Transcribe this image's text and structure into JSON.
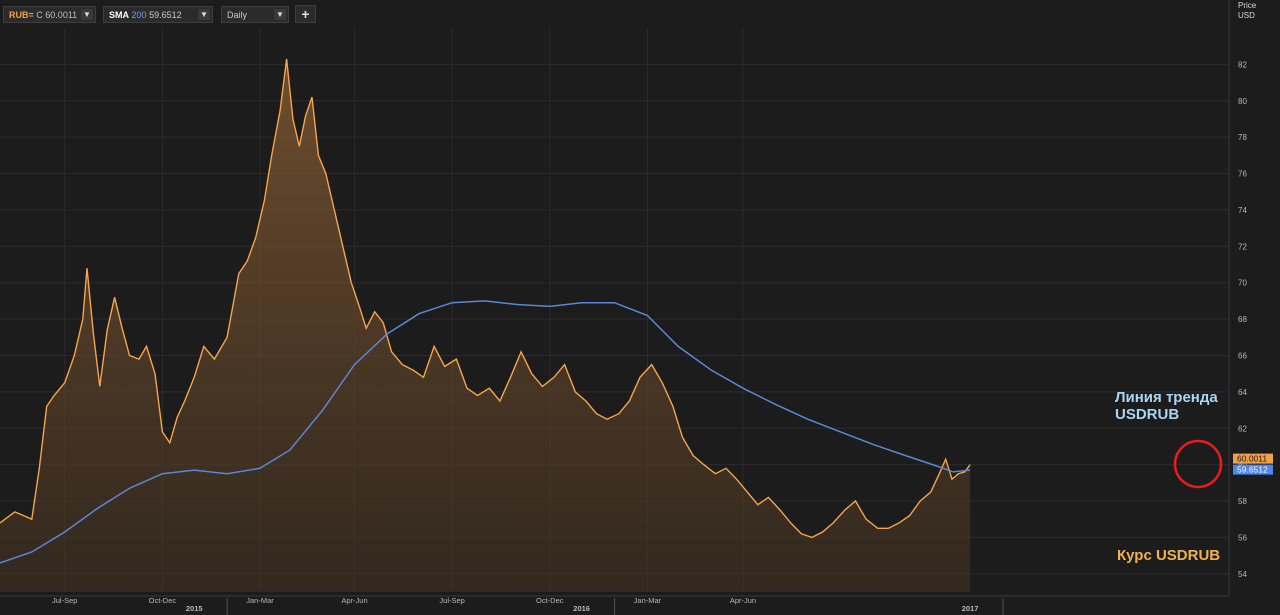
{
  "toolbar": {
    "ric_symbol": "RUB=",
    "ric_close_label": "C",
    "ric_close_value": "60.0011",
    "sma_name": "SMA",
    "sma_period": "200",
    "sma_value": "59.6512",
    "interval": "Daily",
    "add_label": "+",
    "dropdown_glyph": "▼"
  },
  "axis": {
    "price_title": "Price",
    "currency": "USD"
  },
  "annotations": {
    "trend_line_1": "Линия тренда",
    "trend_line_2": "USDRUB",
    "rate_label": "Курс USDRUB"
  },
  "colors": {
    "background": "#1c1c1c",
    "price_line": "#f5a54a",
    "sma_line": "#5b87d8",
    "price_fill": "#7a5530",
    "badge_price": "#f0a046",
    "badge_sma": "#4f86ea",
    "highlight_circle": "#e81c1c",
    "grid": "#2b2b2b"
  },
  "chart_data": {
    "type": "line",
    "title": "",
    "xlabel": "",
    "ylabel": "Price USD",
    "x_range": [
      "2014-06",
      "2017-08"
    ],
    "ylim": [
      53,
      84
    ],
    "grid": true,
    "y_ticks": [
      54,
      56,
      58,
      60,
      62,
      64,
      66,
      68,
      70,
      72,
      74,
      76,
      78,
      80,
      82
    ],
    "x_ticks": [
      {
        "x": "2014-08",
        "label": "Jul-Sep"
      },
      {
        "x": "2014-11",
        "label": "Oct-Dec"
      },
      {
        "x": "2015-02",
        "label": "Jan-Mar"
      },
      {
        "x": "2015-05",
        "label": "Apr-Jun"
      },
      {
        "x": "2015-08",
        "label": "Jul-Sep"
      },
      {
        "x": "2015-11",
        "label": "Oct-Dec"
      },
      {
        "x": "2016-02",
        "label": "Jan-Mar"
      },
      {
        "x": "2016-05",
        "label": "Apr-Jun"
      }
    ],
    "year_labels": [
      {
        "x": "2014-12",
        "label": "2015"
      },
      {
        "x": "2015-12",
        "label": "2016"
      },
      {
        "x": "2016-12",
        "label": "2017"
      }
    ],
    "year_separators": [
      "2015-01",
      "2016-01",
      "2017-01"
    ],
    "series": [
      {
        "name": "RUB=",
        "style": "area",
        "points": [
          [
            "2014-06-01",
            56.8
          ],
          [
            "2014-06-15",
            57.4
          ],
          [
            "2014-07-01",
            57.0
          ],
          [
            "2014-07-08",
            59.8
          ],
          [
            "2014-07-15",
            63.2
          ],
          [
            "2014-07-22",
            63.8
          ],
          [
            "2014-08-01",
            64.5
          ],
          [
            "2014-08-10",
            66.0
          ],
          [
            "2014-08-18",
            68.0
          ],
          [
            "2014-08-22",
            70.8
          ],
          [
            "2014-08-28",
            67.2
          ],
          [
            "2014-09-03",
            64.3
          ],
          [
            "2014-09-10",
            67.4
          ],
          [
            "2014-09-17",
            69.2
          ],
          [
            "2014-09-24",
            67.5
          ],
          [
            "2014-10-01",
            66.0
          ],
          [
            "2014-10-10",
            65.8
          ],
          [
            "2014-10-17",
            66.5
          ],
          [
            "2014-10-25",
            65.0
          ],
          [
            "2014-11-01",
            61.8
          ],
          [
            "2014-11-08",
            61.2
          ],
          [
            "2014-11-15",
            62.6
          ],
          [
            "2014-11-22",
            63.5
          ],
          [
            "2014-12-01",
            64.8
          ],
          [
            "2014-12-10",
            66.5
          ],
          [
            "2014-12-20",
            65.8
          ],
          [
            "2015-01-01",
            67.0
          ],
          [
            "2015-01-12",
            70.5
          ],
          [
            "2015-01-20",
            71.2
          ],
          [
            "2015-01-28",
            72.5
          ],
          [
            "2015-02-05",
            74.5
          ],
          [
            "2015-02-12",
            77.0
          ],
          [
            "2015-02-20",
            79.5
          ],
          [
            "2015-02-26",
            82.3
          ],
          [
            "2015-03-04",
            79.0
          ],
          [
            "2015-03-10",
            77.5
          ],
          [
            "2015-03-16",
            79.2
          ],
          [
            "2015-03-22",
            80.2
          ],
          [
            "2015-03-28",
            77.0
          ],
          [
            "2015-04-04",
            76.0
          ],
          [
            "2015-04-12",
            74.0
          ],
          [
            "2015-04-20",
            72.0
          ],
          [
            "2015-04-28",
            70.0
          ],
          [
            "2015-05-05",
            68.8
          ],
          [
            "2015-05-12",
            67.5
          ],
          [
            "2015-05-20",
            68.4
          ],
          [
            "2015-05-28",
            67.8
          ],
          [
            "2015-06-05",
            66.2
          ],
          [
            "2015-06-15",
            65.5
          ],
          [
            "2015-06-25",
            65.2
          ],
          [
            "2015-07-05",
            64.8
          ],
          [
            "2015-07-15",
            66.5
          ],
          [
            "2015-07-25",
            65.4
          ],
          [
            "2015-08-05",
            65.8
          ],
          [
            "2015-08-15",
            64.2
          ],
          [
            "2015-08-25",
            63.8
          ],
          [
            "2015-09-05",
            64.2
          ],
          [
            "2015-09-15",
            63.5
          ],
          [
            "2015-09-25",
            64.8
          ],
          [
            "2015-10-05",
            66.2
          ],
          [
            "2015-10-15",
            65.0
          ],
          [
            "2015-10-25",
            64.3
          ],
          [
            "2015-11-05",
            64.8
          ],
          [
            "2015-11-15",
            65.5
          ],
          [
            "2015-11-25",
            64.0
          ],
          [
            "2015-12-05",
            63.5
          ],
          [
            "2015-12-15",
            62.8
          ],
          [
            "2015-12-25",
            62.5
          ],
          [
            "2016-01-05",
            62.8
          ],
          [
            "2016-01-15",
            63.5
          ],
          [
            "2016-01-25",
            64.8
          ],
          [
            "2016-02-05",
            65.5
          ],
          [
            "2016-02-15",
            64.5
          ],
          [
            "2016-02-25",
            63.2
          ],
          [
            "2016-03-05",
            61.5
          ],
          [
            "2016-03-15",
            60.5
          ],
          [
            "2016-03-25",
            60.0
          ],
          [
            "2016-04-05",
            59.5
          ],
          [
            "2016-04-15",
            59.8
          ],
          [
            "2016-04-25",
            59.2
          ],
          [
            "2016-05-05",
            58.5
          ],
          [
            "2016-05-15",
            57.8
          ],
          [
            "2016-05-25",
            58.2
          ],
          [
            "2016-06-05",
            57.5
          ],
          [
            "2016-06-15",
            56.8
          ],
          [
            "2016-06-25",
            56.2
          ],
          [
            "2016-07-05",
            56.0
          ],
          [
            "2016-07-15",
            56.3
          ],
          [
            "2016-07-25",
            56.8
          ],
          [
            "2016-08-05",
            57.5
          ],
          [
            "2016-08-15",
            58.0
          ],
          [
            "2016-08-25",
            57.0
          ],
          [
            "2016-09-05",
            56.5
          ],
          [
            "2016-09-15",
            56.5
          ],
          [
            "2016-09-25",
            56.8
          ],
          [
            "2016-10-05",
            57.2
          ],
          [
            "2016-10-15",
            58.0
          ],
          [
            "2016-10-25",
            58.5
          ],
          [
            "2016-11-02",
            59.5
          ],
          [
            "2016-11-08",
            60.3
          ],
          [
            "2016-11-14",
            59.2
          ],
          [
            "2016-11-20",
            59.5
          ],
          [
            "2016-11-26",
            59.6
          ],
          [
            "2016-12-01",
            60.0
          ]
        ]
      },
      {
        "name": "SMA 200",
        "style": "line",
        "points": [
          [
            "2014-06-01",
            54.6
          ],
          [
            "2014-07-01",
            55.2
          ],
          [
            "2014-08-01",
            56.3
          ],
          [
            "2014-09-01",
            57.6
          ],
          [
            "2014-10-01",
            58.7
          ],
          [
            "2014-11-01",
            59.5
          ],
          [
            "2014-12-01",
            59.7
          ],
          [
            "2015-01-01",
            59.5
          ],
          [
            "2015-02-01",
            59.8
          ],
          [
            "2015-03-01",
            60.8
          ],
          [
            "2015-04-01",
            63.0
          ],
          [
            "2015-05-01",
            65.5
          ],
          [
            "2015-06-01",
            67.2
          ],
          [
            "2015-07-01",
            68.3
          ],
          [
            "2015-08-01",
            68.9
          ],
          [
            "2015-09-01",
            69.0
          ],
          [
            "2015-10-01",
            68.8
          ],
          [
            "2015-11-01",
            68.7
          ],
          [
            "2015-12-01",
            68.9
          ],
          [
            "2016-01-01",
            68.9
          ],
          [
            "2016-02-01",
            68.2
          ],
          [
            "2016-03-01",
            66.5
          ],
          [
            "2016-04-01",
            65.2
          ],
          [
            "2016-05-01",
            64.2
          ],
          [
            "2016-06-01",
            63.3
          ],
          [
            "2016-07-01",
            62.5
          ],
          [
            "2016-08-01",
            61.8
          ],
          [
            "2016-09-01",
            61.1
          ],
          [
            "2016-10-01",
            60.5
          ],
          [
            "2016-11-01",
            59.9
          ],
          [
            "2016-11-15",
            59.6
          ],
          [
            "2016-12-01",
            59.7
          ]
        ]
      }
    ],
    "last_values": {
      "price": "60.0011",
      "sma": "59.6512"
    }
  }
}
